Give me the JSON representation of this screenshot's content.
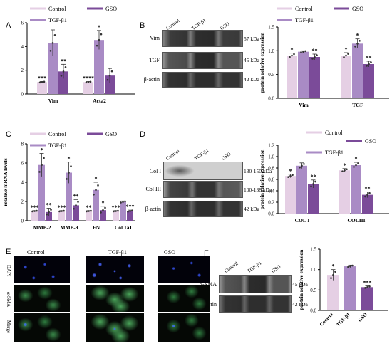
{
  "colors": {
    "light": "#e5cfe4",
    "mid": "#a98bc5",
    "dark": "#7b4b99"
  },
  "legend": {
    "control": "Control",
    "tgf": "TGF-β1",
    "gso": "GSO"
  },
  "panels": {
    "A": "A",
    "B": "B",
    "C": "C",
    "D": "D",
    "E": "E",
    "F": "F"
  },
  "blotB": {
    "lanes": [
      "Control",
      "TGF-β1",
      "GSO"
    ],
    "rows": [
      "Vim",
      "TGF",
      "β-actin"
    ],
    "kda": [
      "57 kDa",
      "45 kDa",
      "42 kDa"
    ]
  },
  "blotD": {
    "lanes": [
      "Control",
      "TGF-β1",
      "GSO"
    ],
    "rows": [
      "Col I",
      "Col III",
      "β-actin"
    ],
    "kda": [
      "130-150 kDa",
      "100-138 kDa",
      "42 kDa"
    ]
  },
  "blotF": {
    "lanes": [
      "Control",
      "TGF-β1",
      "GSO"
    ],
    "rows": [
      "α-SMA",
      "β-actin"
    ],
    "kda": [
      "45 kDa",
      "42 kDa"
    ]
  },
  "ifE": {
    "cols": [
      "Control",
      "TGF-β1",
      "GSO"
    ],
    "rows": [
      "DAPI",
      "α-SMA",
      "Merge"
    ]
  },
  "chart_data": [
    {
      "id": "A",
      "type": "bar",
      "categories": [
        "Vim",
        "Acta2"
      ],
      "series": [
        {
          "name": "Control",
          "values": [
            1.0,
            1.0
          ],
          "err": [
            0.05,
            0.05
          ]
        },
        {
          "name": "TGF-β1",
          "values": [
            4.3,
            4.55
          ],
          "err": [
            1.1,
            0.8
          ]
        },
        {
          "name": "GSO",
          "values": [
            1.9,
            1.55
          ],
          "err": [
            0.6,
            0.6
          ]
        }
      ],
      "ylim": [
        0,
        6
      ],
      "yticks": [
        0,
        2,
        4,
        6
      ],
      "ylabel": "",
      "sig": [
        [
          "***",
          "",
          "**"
        ],
        [
          "****",
          "*",
          ""
        ]
      ]
    },
    {
      "id": "B",
      "type": "bar",
      "categories": [
        "Vim",
        "TGF"
      ],
      "series": [
        {
          "name": "Control",
          "values": [
            0.9,
            0.9
          ],
          "err": [
            0.05,
            0.06
          ]
        },
        {
          "name": "TGF-β1",
          "values": [
            0.98,
            1.15
          ],
          "err": [
            0.02,
            0.1
          ]
        },
        {
          "name": "GSO",
          "values": [
            0.87,
            0.72
          ],
          "err": [
            0.06,
            0.06
          ]
        }
      ],
      "ylim": [
        0,
        1.5
      ],
      "yticks": [
        0.0,
        0.5,
        1.0,
        1.5
      ],
      "ylabel": "protein relative expression",
      "sig": [
        [
          "*",
          "",
          "**"
        ],
        [
          "*",
          "*",
          "**"
        ]
      ]
    },
    {
      "id": "C",
      "type": "bar",
      "categories": [
        "MMP-2",
        "MMP-9",
        "FN",
        "Col 1a1"
      ],
      "series": [
        {
          "name": "Control",
          "values": [
            1.0,
            1.0,
            1.0,
            1.0
          ],
          "err": [
            0.05,
            0.05,
            0.05,
            0.05
          ]
        },
        {
          "name": "TGF-β1",
          "values": [
            5.8,
            5.0,
            3.2,
            1.95
          ],
          "err": [
            1.2,
            1.1,
            0.8,
            0.1
          ]
        },
        {
          "name": "GSO",
          "values": [
            0.9,
            1.6,
            1.1,
            1.0
          ],
          "err": [
            0.4,
            0.6,
            0.4,
            0.1
          ]
        }
      ],
      "ylim": [
        0,
        8
      ],
      "yticks": [
        0,
        2,
        4,
        6,
        8
      ],
      "ylabel": "relative mRNA levels",
      "sig": [
        [
          "***",
          "*",
          "**"
        ],
        [
          "***",
          "*",
          "**"
        ],
        [
          "**",
          "*",
          "*"
        ],
        [
          "***",
          "",
          "***"
        ]
      ]
    },
    {
      "id": "D",
      "type": "bar",
      "categories": [
        "COL I",
        "COLIII"
      ],
      "series": [
        {
          "name": "Control",
          "values": [
            0.66,
            0.76
          ],
          "err": [
            0.03,
            0.03
          ]
        },
        {
          "name": "TGF-β1",
          "values": [
            0.84,
            0.85
          ],
          "err": [
            0.05,
            0.05
          ]
        },
        {
          "name": "GSO",
          "values": [
            0.52,
            0.33
          ],
          "err": [
            0.07,
            0.05
          ]
        }
      ],
      "ylim": [
        0,
        1.2
      ],
      "yticks": [
        0.0,
        0.2,
        0.4,
        0.6,
        0.8,
        1.0,
        1.2
      ],
      "ylabel": "protein relative expression",
      "sig": [
        [
          "*",
          "",
          "**"
        ],
        [
          "*",
          "*",
          "**"
        ]
      ]
    },
    {
      "id": "F",
      "type": "bar",
      "categories": [
        "Control",
        "TGF-β1",
        "GSO"
      ],
      "series": [
        {
          "name": "",
          "values": [
            0.87,
            1.08,
            0.57
          ],
          "err": [
            0.13,
            0.03,
            0.03
          ]
        }
      ],
      "ylim": [
        0,
        1.5
      ],
      "yticks": [
        0.0,
        0.5,
        1.0,
        1.5
      ],
      "ylabel": "protein relative expression",
      "sig": [
        [
          "*",
          "",
          "***"
        ]
      ]
    }
  ]
}
